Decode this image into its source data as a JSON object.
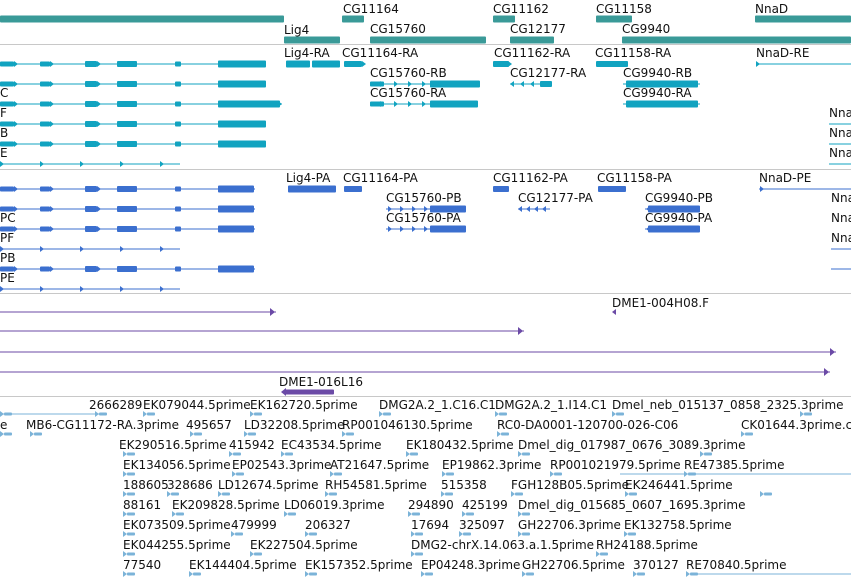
{
  "tracks": {
    "gene_span": {
      "name": "gene-span-track",
      "color": "#3a9a98",
      "labels": [
        "CG11164",
        "Lig4",
        "CG15760",
        "CG11162",
        "CG12177",
        "CG11158",
        "CG9940",
        "NnaD"
      ]
    },
    "transcripts": {
      "name": "transcript-track",
      "color": "#11a3c0",
      "labels": [
        "Lig4-RA",
        "CG11164-RA",
        "CG15760-RB",
        "CG15760-RA",
        "CG11162-RA",
        "CG12177-RA",
        "CG11158-RA",
        "CG9940-RB",
        "CG9940-RA",
        "NnaD-RE",
        "C",
        "F",
        "B",
        "E",
        "Nna",
        "Nna",
        "Nna"
      ]
    },
    "proteins": {
      "name": "protein-track",
      "color": "#3b6fcf",
      "labels": [
        "Lig4-PA",
        "CG11164-PA",
        "CG15760-PB",
        "CG15760-PA",
        "CG11162-PA",
        "CG12177-PA",
        "CG11158-PA",
        "CG9940-PB",
        "CG9940-PA",
        "NnaD-PE",
        "PC",
        "PF",
        "PB",
        "PE",
        "Nna",
        "Nna",
        "Nna"
      ]
    },
    "clones": {
      "name": "clone-track",
      "color": "#6b4aa6",
      "labels": [
        "DME1-004H08.F",
        "DME1-016L16"
      ]
    },
    "ests": {
      "name": "est-track",
      "color": "#7bb3d8",
      "labels": [
        "2666289",
        "EK079044.5prime",
        "EK162720.5prime",
        "DMG2A.2_1.C16.C1",
        "DMG2A.2_1.I14.C1",
        "Dmel_neb_015137_0858_2325.3prime",
        "e",
        "MB6-CG11172-RA.3prime",
        "495657",
        "LD32208.5prime",
        "RP001046130.5prime",
        "RC0-DA0001-120700-026-C06",
        "CK01644.3prime.c",
        "EK290516.5prime",
        "415942",
        "EC43534.5prime",
        "EK180432.5prime",
        "Dmel_dig_017987_0676_3089.3prime",
        "EK134056.5prime",
        "EP02543.3prime",
        "AT21647.5prime",
        "EP19862.3prime",
        "RP001021979.5prime",
        "RE47385.5prime",
        "188605",
        "328686",
        "LD12674.5prime",
        "RH54581.5prime",
        "515358",
        "FGH128B05.5prime",
        "EK246441.5prime",
        "88161",
        "EK209828.5prime",
        "LD06019.3prime",
        "294890",
        "425199",
        "Dmel_dig_015685_0607_1695.3prime",
        "EK073509.5prime",
        "479999",
        "206327",
        "17694",
        "325097",
        "GH22706.3prime",
        "EK132758.5prime",
        "EK044255.5prime",
        "EK227504.5prime",
        "DMG2-chrX.14.063.a.1.5prime",
        "RH24188.5prime",
        "77540",
        "EK144404.5prime",
        "EK157352.5prime",
        "EP04248.3prime",
        "GH22706.5prime",
        "370127",
        "RE70840.5prime"
      ]
    }
  }
}
